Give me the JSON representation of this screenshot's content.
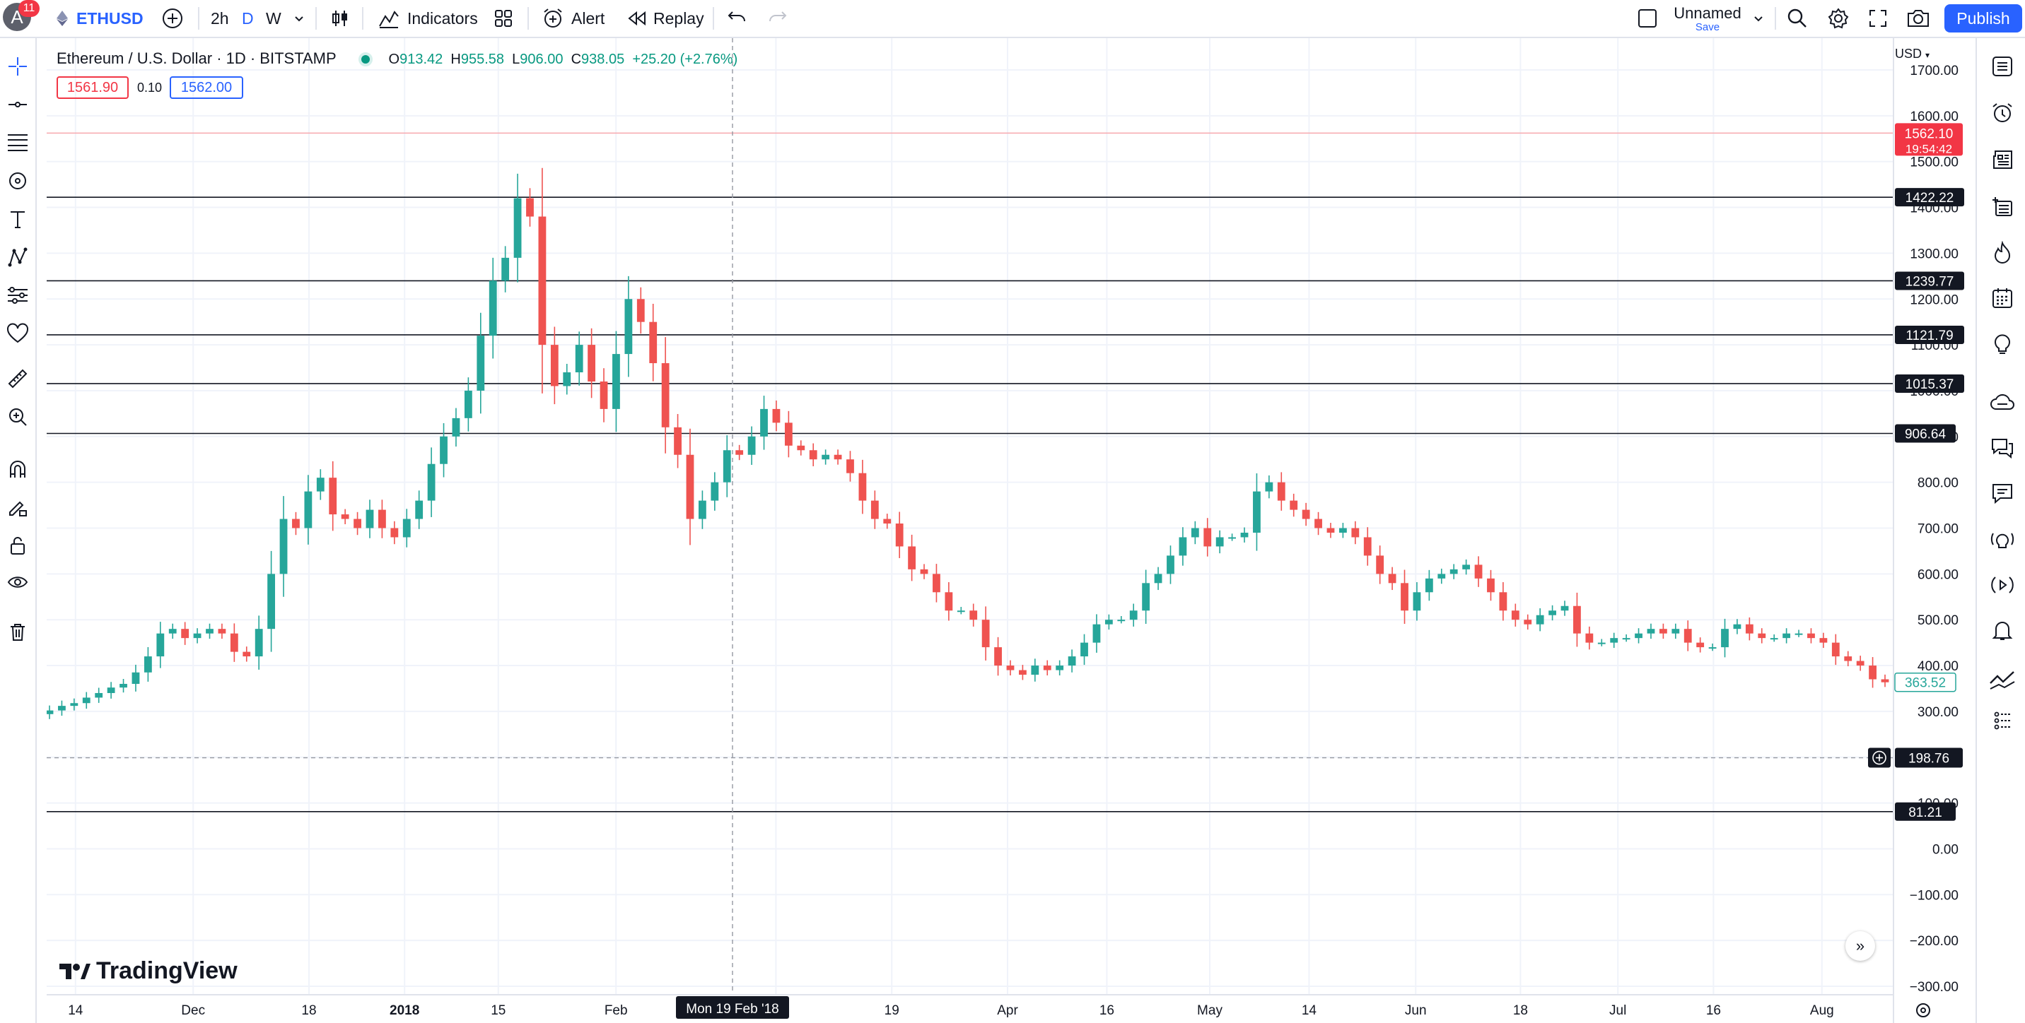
{
  "topbar": {
    "avatar_letter": "A",
    "notification_count": "11",
    "symbol": "ETHUSD",
    "intervals": [
      "2h",
      "D",
      "W"
    ],
    "indicators_label": "Indicators",
    "alert_label": "Alert",
    "replay_label": "Replay",
    "layout_name": "Unnamed",
    "save_label": "Save",
    "publish_label": "Publish"
  },
  "legend": {
    "title": "Ethereum / U.S. Dollar · 1D · BITSTAMP",
    "open_label": "O",
    "open": "913.42",
    "high_label": "H",
    "high": "955.58",
    "low_label": "L",
    "low": "906.00",
    "close_label": "C",
    "close": "938.05",
    "change": "+25.20 (+2.76%)",
    "bid": "1561.90",
    "spread": "0.10",
    "ask": "1562.00"
  },
  "currency_label": "USD",
  "logo_text": "TradingView",
  "colors": {
    "up": "#26a69a",
    "down": "#ef5350",
    "accent": "#2962ff",
    "hline": "#131722"
  },
  "chart_data": {
    "type": "candlestick",
    "title": "",
    "xlabel": "",
    "ylabel": "",
    "ylim": [
      -300,
      1700
    ],
    "y_ticks": [
      "1700.00",
      "1600.00",
      "1500.00",
      "1400.00",
      "1300.00",
      "1200.00",
      "1100.00",
      "1000.00",
      "900.00",
      "800.00",
      "700.00",
      "600.00",
      "500.00",
      "400.00",
      "300.00",
      "200.00",
      "100.00",
      "0.00",
      "−100.00",
      "−200.00",
      "−300.00"
    ],
    "x_ticks": [
      "14",
      "Dec",
      "18",
      "2018",
      "15",
      "Feb",
      "Mar",
      "19",
      "Apr",
      "16",
      "May",
      "14",
      "Jun",
      "18",
      "Jul",
      "16",
      "Aug"
    ],
    "crosshair_date": "Mon 19 Feb '18",
    "crosshair_price": "198.76",
    "last_price": "1562.10",
    "countdown": "19:54:42",
    "series_last_value": "363.52",
    "horizontal_lines": [
      "1422.22",
      "1239.77",
      "1121.79",
      "1015.37",
      "906.64",
      "81.21"
    ],
    "candles_close_approx": [
      302,
      312,
      318,
      330,
      340,
      352,
      360,
      385,
      420,
      470,
      480,
      460,
      470,
      480,
      470,
      430,
      420,
      480,
      600,
      720,
      700,
      780,
      810,
      730,
      720,
      700,
      740,
      700,
      680,
      720,
      760,
      840,
      900,
      940,
      1000,
      1120,
      1240,
      1290,
      1420,
      1380,
      1100,
      1010,
      1040,
      1100,
      1020,
      960,
      1080,
      1200,
      1150,
      1060,
      920,
      860,
      720,
      760,
      800,
      870,
      860,
      900,
      960,
      930,
      880,
      870,
      850,
      860,
      850,
      820,
      760,
      720,
      710,
      660,
      610,
      600,
      560,
      520,
      520,
      500,
      440,
      400,
      390,
      380,
      400,
      390,
      400,
      420,
      450,
      490,
      500,
      500,
      520,
      580,
      600,
      640,
      680,
      700,
      660,
      680,
      680,
      690,
      780,
      800,
      760,
      740,
      720,
      700,
      690,
      700,
      680,
      640,
      600,
      580,
      520,
      560,
      590,
      600,
      610,
      620,
      590,
      560,
      520,
      500,
      490,
      510,
      520,
      530,
      470,
      450,
      450,
      460,
      460,
      470,
      480,
      470,
      480,
      450,
      440,
      440,
      480,
      490,
      470,
      460,
      460,
      470,
      470,
      460,
      450,
      420,
      410,
      400,
      370,
      363.52
    ]
  }
}
